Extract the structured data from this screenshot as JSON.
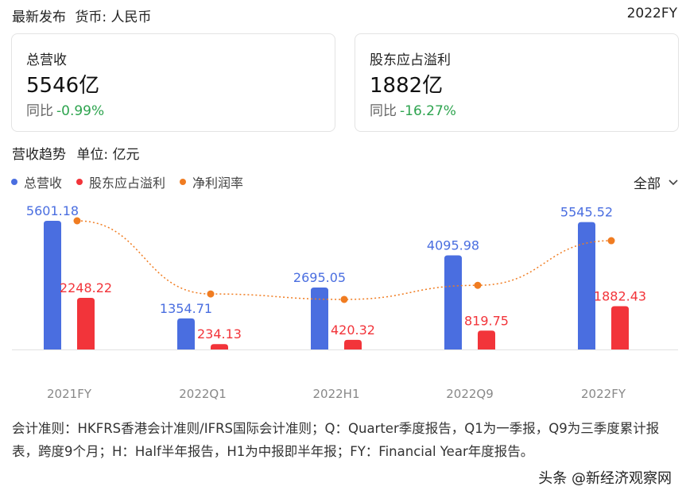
{
  "header": {
    "title": "最新发布",
    "currency": "货币: 人民币",
    "period": "2022FY"
  },
  "cards": [
    {
      "label": "总营收",
      "value": "5546亿",
      "yoy_label": "同比",
      "yoy_change": "-0.99%"
    },
    {
      "label": "股东应占溢利",
      "value": "1882亿",
      "yoy_label": "同比",
      "yoy_change": "-16.27%"
    }
  ],
  "trend": {
    "title": "营收趋势",
    "unit": "单位: 亿元"
  },
  "filter": {
    "label": "全部"
  },
  "colors": {
    "revenue": "#4a6ee0",
    "profit": "#f2343a",
    "margin": "#f07c21",
    "positive": "#2ea44f",
    "axis_text": "#888888"
  },
  "chart_data": {
    "type": "bar",
    "categories": [
      "2021FY",
      "2022Q1",
      "2022H1",
      "2022Q9",
      "2022FY"
    ],
    "series": [
      {
        "name": "总营收",
        "type": "bar",
        "values": [
          5601.18,
          1354.71,
          2695.05,
          4095.98,
          5545.52
        ]
      },
      {
        "name": "股东应占溢利",
        "type": "bar",
        "values": [
          2248.22,
          234.13,
          420.32,
          819.75,
          1882.43
        ]
      },
      {
        "name": "净利润率",
        "type": "line",
        "values": [
          40.1,
          17.3,
          15.6,
          20.0,
          33.9
        ]
      }
    ],
    "data_labels": {
      "总营收": [
        "5601.18",
        "1354.71",
        "2695.05",
        "4095.98",
        "5545.52"
      ],
      "股东应占溢利": [
        "2248.22",
        "234.13",
        "420.32",
        "819.75",
        "1882.43"
      ]
    },
    "ylim": [
      0,
      5601.18
    ],
    "grid": false,
    "legend": "top-left"
  },
  "footnote": "会计准则：HKFRS香港会计准则/IFRS国际会计准则；Q：Quarter季度报告，Q1为一季报，Q9为三季度累计报表，跨度9个月；H：Half半年报告，H1为中报即半年报；FY：Financial Year年度报告。",
  "watermark": "头条 @新经济观察网"
}
